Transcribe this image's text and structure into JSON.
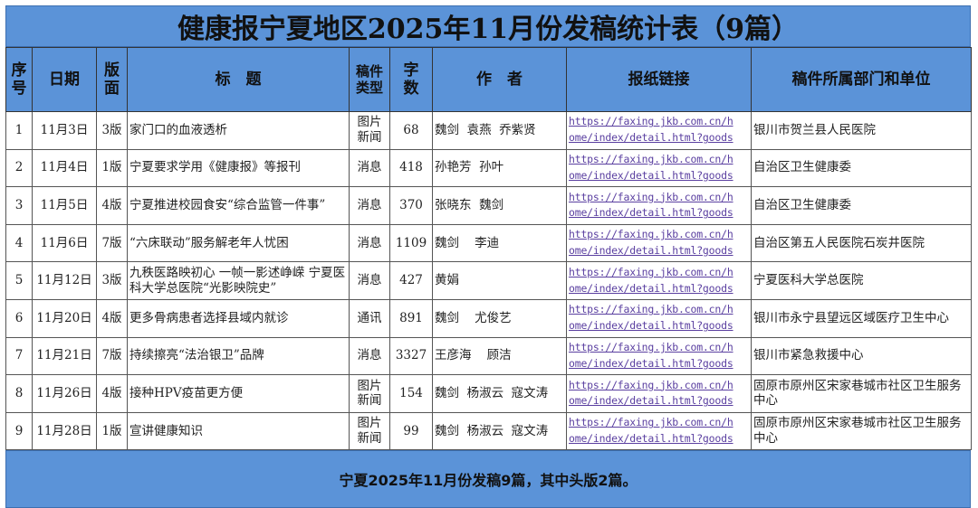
{
  "title": "健康报宁夏地区2025年11月份发稿统计表（9篇）",
  "headers": [
    "序号",
    "日期",
    "版面",
    "标　题",
    "稿件类型",
    "字数",
    "作　者",
    "报纸链接",
    "稿件所属部门和单位"
  ],
  "link_line1": "https://faxing.jkb.com.cn/h",
  "link_line2": "ome/index/detail.html?goods",
  "rows": [
    {
      "no": "1",
      "date": "11月3日",
      "page": "3版",
      "title": "家门口的血液透析",
      "type": "图片新闻",
      "words": "68",
      "author": "魏剑  袁燕  乔紫贤",
      "unit": "银川市贺兰县人民医院"
    },
    {
      "no": "2",
      "date": "11月4日",
      "page": "1版",
      "title": "宁夏要求学用《健康报》等报刊",
      "type": "消息",
      "words": "418",
      "author": "孙艳芳  孙叶",
      "unit": "自治区卫生健康委"
    },
    {
      "no": "3",
      "date": "11月5日",
      "page": "4版",
      "title": "宁夏推进校园食安“综合监管一件事”",
      "type": "消息",
      "words": "370",
      "author": "张晓东  魏剑",
      "unit": "自治区卫生健康委"
    },
    {
      "no": "4",
      "date": "11月6日",
      "page": "7版",
      "title": "“六床联动”服务解老年人忧困",
      "type": "消息",
      "words": "1109",
      "author": "魏剑    李迪",
      "unit": "自治区第五人民医院石炭井医院"
    },
    {
      "no": "5",
      "date": "11月12日",
      "page": "3版",
      "title": "九秩医路映初心 一帧一影述峥嵘 宁夏医科大学总医院“光影映院史”",
      "type": "消息",
      "words": "427",
      "author": "黄娟",
      "unit": "宁夏医科大学总医院"
    },
    {
      "no": "6",
      "date": "11月20日",
      "page": "4版",
      "title": "更多骨病患者选择县域内就诊",
      "type": "通讯",
      "words": "891",
      "author": "魏剑    尤俊艺",
      "unit": "银川市永宁县望远区域医疗卫生中心"
    },
    {
      "no": "7",
      "date": "11月21日",
      "page": "7版",
      "title": "持续擦亮“法治银卫”品牌",
      "type": "消息",
      "words": "3327",
      "author": "王彦海    顾洁",
      "unit": "银川市紧急救援中心"
    },
    {
      "no": "8",
      "date": "11月26日",
      "page": "4版",
      "title": "接种HPV疫苗更方便",
      "type": "图片新闻",
      "words": "154",
      "author": "魏剑  杨淑云  寇文涛",
      "unit": "固原市原州区宋家巷城市社区卫生服务中心"
    },
    {
      "no": "9",
      "date": "11月28日",
      "page": "1版",
      "title": "宣讲健康知识",
      "type": "图片新闻",
      "words": "99",
      "author": "魏剑  杨淑云  寇文涛",
      "unit": "固原市原州区宋家巷城市社区卫生服务中心"
    }
  ],
  "footer": "宁夏2025年11月份发稿9篇，其中头版2篇。",
  "colors": {
    "header_bg": "#5b93d8",
    "link": "#5a3fa0"
  }
}
